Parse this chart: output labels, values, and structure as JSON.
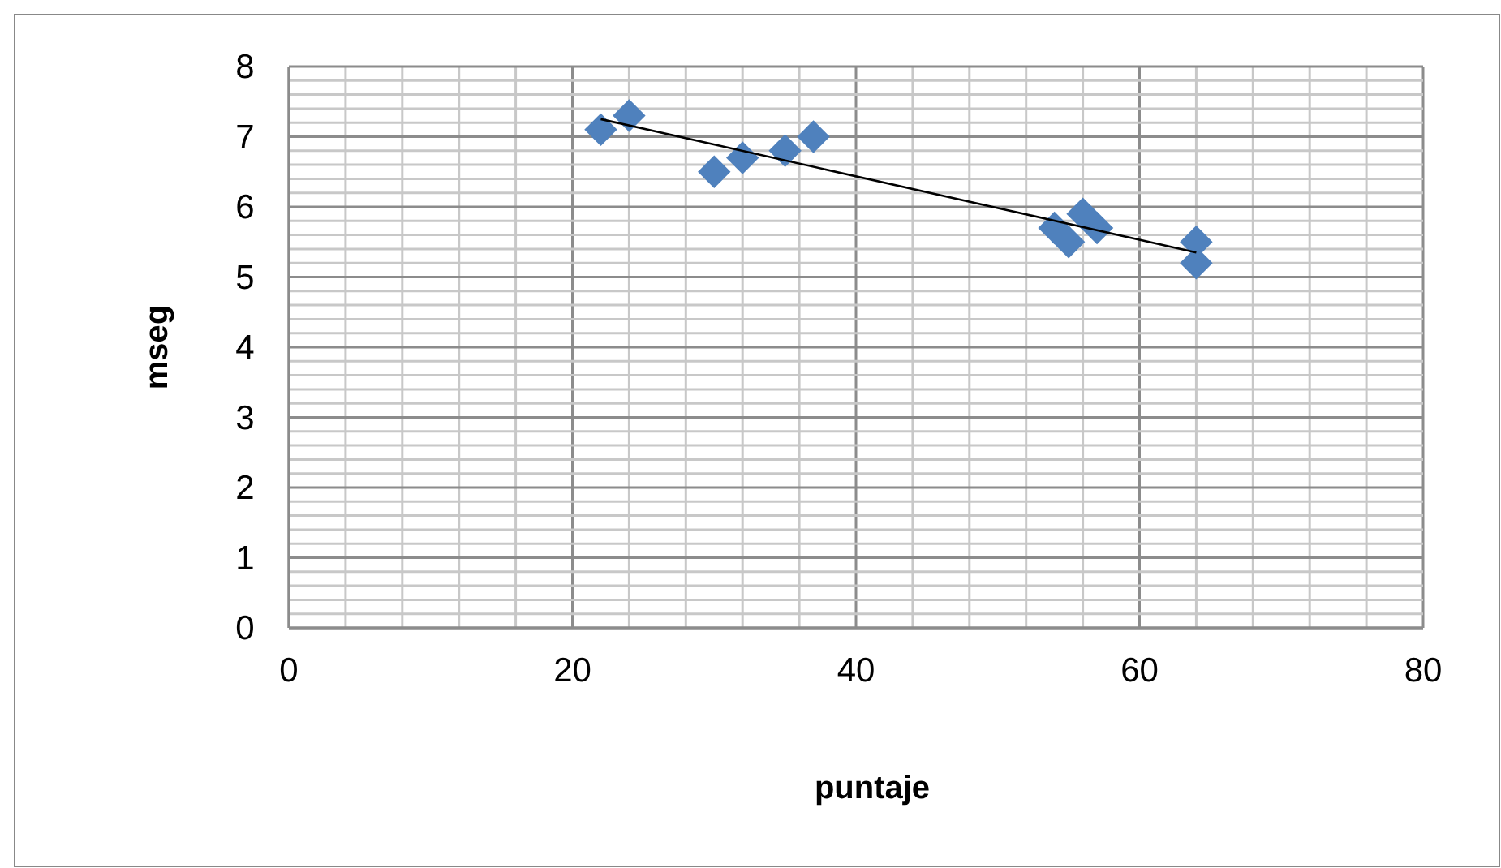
{
  "chart_data": {
    "type": "scatter",
    "xlabel": "puntaje",
    "ylabel": "mseg",
    "xlim": [
      0,
      80
    ],
    "ylim": [
      0,
      8
    ],
    "xticks": [
      0,
      {
        "value": 4,
        "label": null
      },
      {
        "value": 8,
        "label": null
      },
      {
        "value": 12,
        "label": null
      },
      {
        "value": 16,
        "label": null
      },
      20,
      {
        "value": 24,
        "label": null
      },
      {
        "value": 28,
        "label": null
      },
      {
        "value": 32,
        "label": null
      },
      {
        "value": 36,
        "label": null
      },
      40,
      {
        "value": 44,
        "label": null
      },
      {
        "value": 48,
        "label": null
      },
      {
        "value": 52,
        "label": null
      },
      {
        "value": 56,
        "label": null
      },
      60,
      {
        "value": 64,
        "label": null
      },
      {
        "value": 68,
        "label": null
      },
      {
        "value": 72,
        "label": null
      },
      {
        "value": 76,
        "label": null
      },
      80
    ],
    "yticks": [
      0,
      {
        "value": 0.2,
        "label": null
      },
      {
        "value": 0.4,
        "label": null
      },
      {
        "value": 0.6,
        "label": null
      },
      {
        "value": 0.8,
        "label": null
      },
      1,
      {
        "value": 1.2,
        "label": null
      },
      {
        "value": 1.4,
        "label": null
      },
      {
        "value": 1.6,
        "label": null
      },
      {
        "value": 1.8,
        "label": null
      },
      2,
      {
        "value": 2.2,
        "label": null
      },
      {
        "value": 2.4,
        "label": null
      },
      {
        "value": 2.6,
        "label": null
      },
      {
        "value": 2.8,
        "label": null
      },
      3,
      {
        "value": 3.2,
        "label": null
      },
      {
        "value": 3.4,
        "label": null
      },
      {
        "value": 3.6,
        "label": null
      },
      {
        "value": 3.8,
        "label": null
      },
      4,
      {
        "value": 4.2,
        "label": null
      },
      {
        "value": 4.4,
        "label": null
      },
      {
        "value": 4.6,
        "label": null
      },
      {
        "value": 4.8,
        "label": null
      },
      5,
      {
        "value": 5.2,
        "label": null
      },
      {
        "value": 5.4,
        "label": null
      },
      {
        "value": 5.6,
        "label": null
      },
      {
        "value": 5.8,
        "label": null
      },
      6,
      {
        "value": 6.2,
        "label": null
      },
      {
        "value": 6.4,
        "label": null
      },
      {
        "value": 6.6,
        "label": null
      },
      {
        "value": 6.8,
        "label": null
      },
      7,
      {
        "value": 7.2,
        "label": null
      },
      {
        "value": 7.4,
        "label": null
      },
      {
        "value": 7.6,
        "label": null
      },
      {
        "value": 7.8,
        "label": null
      },
      8
    ],
    "grid": true,
    "marker": "diamond",
    "series": [
      {
        "color": "#4f81bd",
        "x": [
          22,
          24,
          30,
          32,
          35,
          37,
          54,
          55,
          56,
          57,
          64,
          64
        ],
        "values": [
          7.1,
          7.3,
          6.5,
          6.7,
          6.8,
          7.0,
          5.7,
          5.5,
          5.9,
          5.7,
          5.5,
          5.2
        ]
      },
      {
        "type": "line",
        "color": "#000000",
        "marker": "none",
        "x": [
          22,
          64
        ],
        "values": [
          7.25,
          5.35
        ]
      }
    ]
  }
}
